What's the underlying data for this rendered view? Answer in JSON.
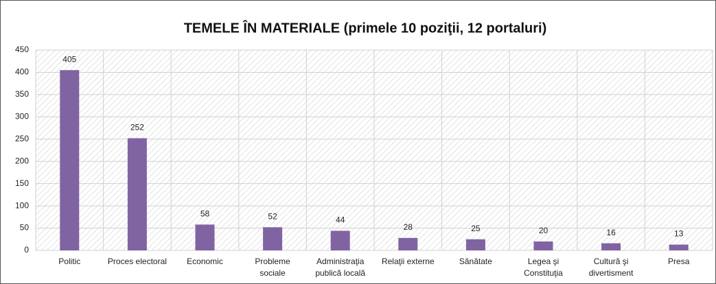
{
  "chart_data": {
    "type": "bar",
    "title": "TEMELE ÎN MATERIALE (primele 10 poziţii, 12 portaluri)",
    "categories": [
      "Politic",
      "Proces electoral",
      "Economic",
      "Probleme sociale",
      "Administraţia publică locală",
      "Relaţii externe",
      "Sănătate",
      "Legea şi Constituţia",
      "Cultură şi divertisment",
      "Presa"
    ],
    "values": [
      405,
      252,
      58,
      52,
      44,
      28,
      25,
      20,
      16,
      13
    ],
    "color": "#8064a2",
    "ylim": [
      0,
      450
    ],
    "yticks": [
      0,
      50,
      100,
      150,
      200,
      250,
      300,
      350,
      400,
      450
    ],
    "grid": true
  }
}
